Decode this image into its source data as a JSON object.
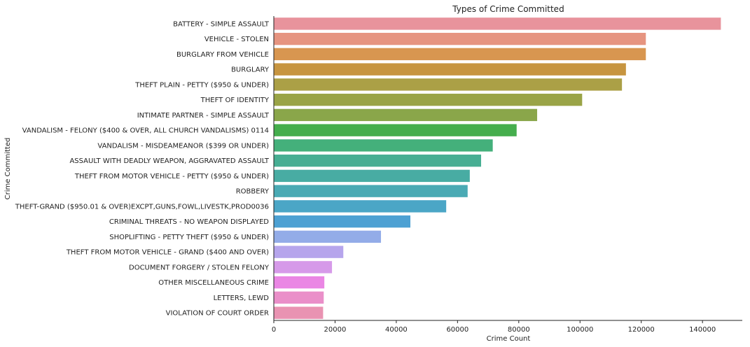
{
  "chart_data": {
    "type": "bar",
    "orientation": "horizontal",
    "title": "Types of Crime Committed",
    "xlabel": "Crime Count",
    "ylabel": "Crime Committed",
    "xlim": [
      0,
      153000
    ],
    "xticks": [
      0,
      20000,
      40000,
      60000,
      80000,
      100000,
      120000,
      140000
    ],
    "grid": false,
    "categories": [
      "BATTERY - SIMPLE ASSAULT",
      "VEHICLE - STOLEN",
      "BURGLARY FROM VEHICLE",
      "BURGLARY",
      "THEFT PLAIN - PETTY ($950 & UNDER)",
      "THEFT OF IDENTITY",
      "INTIMATE PARTNER - SIMPLE ASSAULT",
      "VANDALISM - FELONY ($400 & OVER, ALL CHURCH VANDALISMS) 0114",
      "VANDALISM - MISDEAMEANOR ($399 OR UNDER)",
      "ASSAULT WITH DEADLY WEAPON, AGGRAVATED ASSAULT",
      "THEFT FROM MOTOR VEHICLE - PETTY ($950 & UNDER)",
      "ROBBERY",
      "THEFT-GRAND ($950.01 & OVER)EXCPT,GUNS,FOWL,LIVESTK,PROD0036",
      "CRIMINAL THREATS - NO WEAPON DISPLAYED",
      "SHOPLIFTING - PETTY THEFT ($950 & UNDER)",
      "THEFT FROM MOTOR VEHICLE - GRAND ($400 AND OVER)",
      "DOCUMENT FORGERY / STOLEN FELONY",
      "OTHER MISCELLANEOUS CRIME",
      "LETTERS, LEWD",
      "VIOLATION OF COURT ORDER"
    ],
    "values": [
      146000,
      121500,
      121500,
      115000,
      113700,
      100700,
      86000,
      79300,
      71500,
      67700,
      64000,
      63300,
      56300,
      44600,
      35000,
      22700,
      19000,
      16500,
      16300,
      16100
    ],
    "colors": [
      "#e8939c",
      "#e69480",
      "#d89650",
      "#c79540",
      "#aba046",
      "#9aa447",
      "#8aa64a",
      "#45ae4d",
      "#44b07b",
      "#47ae93",
      "#48aca3",
      "#4aaab4",
      "#4ba6c6",
      "#4da1d3",
      "#93ace8",
      "#b6a5ec",
      "#d69ae9",
      "#ea86e4",
      "#ea8fc9",
      "#e993b2"
    ]
  }
}
